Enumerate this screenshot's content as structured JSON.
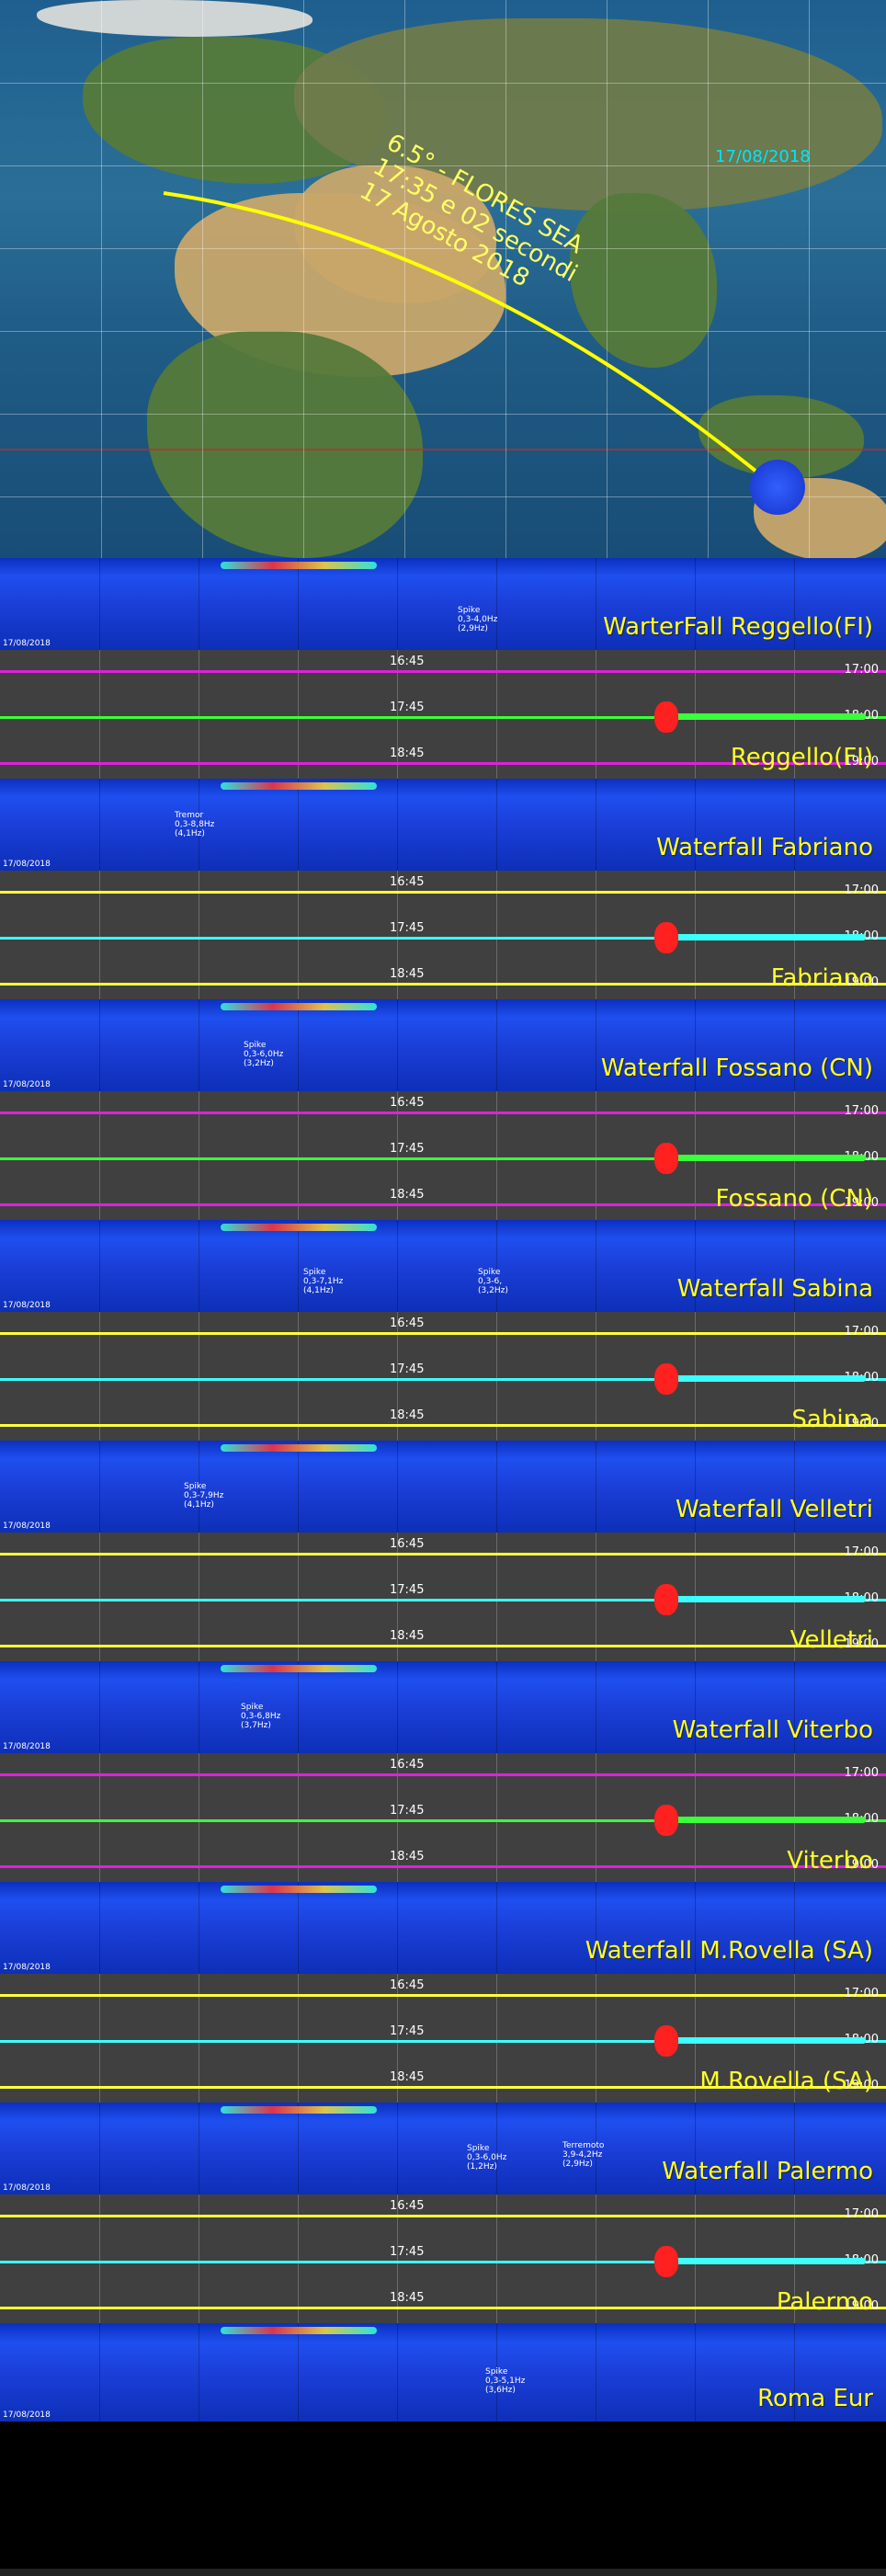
{
  "map": {
    "date": "17/08/2018",
    "event_lines": [
      "6.5° - FLORES SEA",
      "17:35 e 02 secondi",
      "17 Agosto 2018"
    ],
    "colors": {
      "path": "#ffff00",
      "event": "#2a4fff",
      "text": "#ffff66"
    }
  },
  "waterfall_common": {
    "date": "17/08/2018"
  },
  "seis_time_labels": {
    "left": [
      "16:45",
      "17:45",
      "18:45"
    ],
    "right": [
      "17:00",
      "18:00",
      "19:00"
    ]
  },
  "stations": [
    {
      "waterfall_label": "WarterFall Reggello(FI)",
      "seis_label": "Reggello(FI)",
      "notes": [
        {
          "lines": [
            "Spike",
            "0,3-4,0Hz",
            "(2,9Hz)"
          ]
        }
      ]
    },
    {
      "waterfall_label": "Waterfall Fabriano",
      "seis_label": "Fabriano",
      "notes": [
        {
          "lines": [
            "Tremor",
            "0,3-8,8Hz",
            "(4,1Hz)"
          ]
        }
      ]
    },
    {
      "waterfall_label": "Waterfall Fossano (CN)",
      "seis_label": "Fossano (CN)",
      "notes": [
        {
          "lines": [
            "Spike",
            "0,3-6,0Hz",
            "(3,2Hz)"
          ]
        }
      ]
    },
    {
      "waterfall_label": "Waterfall Sabina",
      "seis_label": "Sabina",
      "notes": [
        {
          "lines": [
            "Spike",
            "0,3-7,1Hz",
            "(4,1Hz)"
          ]
        },
        {
          "lines": [
            "Spike",
            "0,3-6,",
            "(3,2Hz)"
          ]
        }
      ]
    },
    {
      "waterfall_label": "Waterfall Velletri",
      "seis_label": "Velletri",
      "notes": [
        {
          "lines": [
            "Spike",
            "0,3-7,9Hz",
            "(4,1Hz)"
          ]
        }
      ]
    },
    {
      "waterfall_label": "Waterfall Viterbo",
      "seis_label": "Viterbo",
      "notes": [
        {
          "lines": [
            "Spike",
            "0,3-6,8Hz",
            "(3,7Hz)"
          ]
        }
      ]
    },
    {
      "waterfall_label": "Waterfall M.Rovella (SA)",
      "seis_label": "M.Rovella (SA)",
      "notes": []
    },
    {
      "waterfall_label": "Waterfall Palermo",
      "seis_label": "Palermo",
      "notes": [
        {
          "lines": [
            "Spike",
            "0,3-6,0Hz",
            "(1,2Hz)"
          ]
        },
        {
          "lines": [
            "Terremoto",
            "3,9-4,2Hz",
            "(2,9Hz)"
          ]
        }
      ]
    },
    {
      "waterfall_label": "Roma Eur",
      "seis_label": "",
      "notes": [
        {
          "lines": [
            "Spike",
            "0,3-5,1Hz",
            "(3,6Hz)"
          ]
        }
      ]
    }
  ]
}
